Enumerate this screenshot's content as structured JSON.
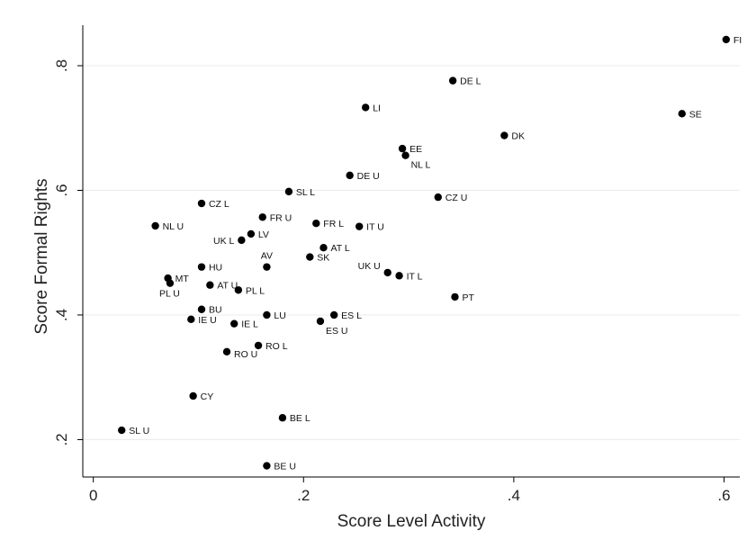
{
  "chart_data": {
    "type": "scatter",
    "title": "",
    "xlabel": "Score Level Activity",
    "ylabel": "Score Formal Rights",
    "xlim": [
      -0.01,
      0.615
    ],
    "ylim": [
      0.14,
      0.865
    ],
    "xticks": [
      0,
      0.2,
      0.4,
      0.6
    ],
    "xtick_labels": [
      "0",
      ".2",
      ".4",
      ".6"
    ],
    "yticks": [
      0.2,
      0.4,
      0.6,
      0.8
    ],
    "ytick_labels": [
      ".2",
      ".4",
      ".6",
      ".8"
    ],
    "grid": "horizontal",
    "marker_color": "#000000",
    "highlight_color": "#e03030",
    "points": [
      {
        "label": "FI",
        "x": 0.602,
        "y": 0.842
      },
      {
        "label": "DE L",
        "x": 0.342,
        "y": 0.776
      },
      {
        "label": "LI",
        "x": 0.259,
        "y": 0.733
      },
      {
        "label": "SE",
        "x": 0.56,
        "y": 0.723
      },
      {
        "label": "DK",
        "x": 0.391,
        "y": 0.688
      },
      {
        "label": "EE",
        "x": 0.294,
        "y": 0.667
      },
      {
        "label": "NL L",
        "x": 0.297,
        "y": 0.656
      },
      {
        "label": "DE U",
        "x": 0.244,
        "y": 0.624
      },
      {
        "label": "SL L",
        "x": 0.186,
        "y": 0.598
      },
      {
        "label": "CZ U",
        "x": 0.328,
        "y": 0.589
      },
      {
        "label": "CZ L",
        "x": 0.103,
        "y": 0.579
      },
      {
        "label": "FR U",
        "x": 0.161,
        "y": 0.557
      },
      {
        "label": "FR L",
        "x": 0.212,
        "y": 0.547
      },
      {
        "label": "NL U",
        "x": 0.059,
        "y": 0.543
      },
      {
        "label": "IT U",
        "x": 0.253,
        "y": 0.542
      },
      {
        "label": "LV",
        "x": 0.15,
        "y": 0.53
      },
      {
        "label": "UK L",
        "x": 0.141,
        "y": 0.52
      },
      {
        "label": "AT L",
        "x": 0.219,
        "y": 0.508
      },
      {
        "label": "SK",
        "x": 0.206,
        "y": 0.493
      },
      {
        "label": "AV",
        "x": 0.165,
        "y": 0.477,
        "highlight": true
      },
      {
        "label": "HU",
        "x": 0.103,
        "y": 0.477
      },
      {
        "label": "UK U",
        "x": 0.28,
        "y": 0.468
      },
      {
        "label": "IT L",
        "x": 0.291,
        "y": 0.463
      },
      {
        "label": "MT",
        "x": 0.071,
        "y": 0.459
      },
      {
        "label": "PL U",
        "x": 0.073,
        "y": 0.451
      },
      {
        "label": "AT U",
        "x": 0.111,
        "y": 0.448
      },
      {
        "label": "PL L",
        "x": 0.138,
        "y": 0.44
      },
      {
        "label": "PT",
        "x": 0.344,
        "y": 0.429
      },
      {
        "label": "BU",
        "x": 0.103,
        "y": 0.409
      },
      {
        "label": "LU",
        "x": 0.165,
        "y": 0.4
      },
      {
        "label": "ES L",
        "x": 0.229,
        "y": 0.4
      },
      {
        "label": "IE U",
        "x": 0.093,
        "y": 0.393
      },
      {
        "label": "ES U",
        "x": 0.216,
        "y": 0.39
      },
      {
        "label": "IE L",
        "x": 0.134,
        "y": 0.386
      },
      {
        "label": "RO L",
        "x": 0.157,
        "y": 0.351
      },
      {
        "label": "RO U",
        "x": 0.127,
        "y": 0.341
      },
      {
        "label": "CY",
        "x": 0.095,
        "y": 0.27
      },
      {
        "label": "BE L",
        "x": 0.18,
        "y": 0.235
      },
      {
        "label": "SL U",
        "x": 0.027,
        "y": 0.215
      },
      {
        "label": "BE U",
        "x": 0.165,
        "y": 0.158
      }
    ]
  }
}
